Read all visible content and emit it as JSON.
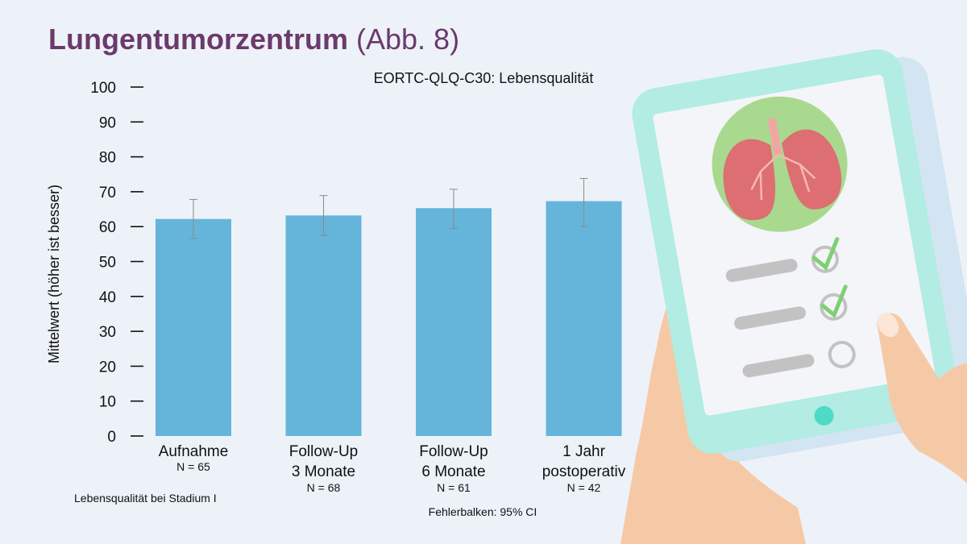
{
  "page": {
    "title_main": "Lungentumorzentrum",
    "title_suffix": "(Abb. 8)"
  },
  "chart_data": {
    "type": "bar",
    "title": "EORTC-QLQ-C30: Lebensqualität",
    "ylabel": "Mittelwert (höher ist besser)",
    "xlabel": "",
    "ylim": [
      0,
      100
    ],
    "yticks": [
      0,
      10,
      20,
      30,
      40,
      50,
      60,
      70,
      80,
      90,
      100
    ],
    "categories": [
      {
        "line1": "Aufnahme",
        "line2": "",
        "n": "N = 65"
      },
      {
        "line1": "Follow-Up",
        "line2": "3 Monate",
        "n": "N = 68"
      },
      {
        "line1": "Follow-Up",
        "line2": "6 Monate",
        "n": "N = 61"
      },
      {
        "line1": "1 Jahr",
        "line2": "postoperativ",
        "n": "N = 42"
      }
    ],
    "values": [
      62.2,
      63.2,
      65.3,
      67.3
    ],
    "ci_low": [
      56.6,
      57.5,
      59.5,
      60.0
    ],
    "ci_high": [
      67.8,
      68.9,
      70.7,
      73.8
    ],
    "bar_color": "#65b5da",
    "footnote_left": "Lebensqualität bei Stadium I",
    "footnote_center": "Fehlerbalken: 95% CI",
    "grid": false,
    "legend": "none"
  }
}
